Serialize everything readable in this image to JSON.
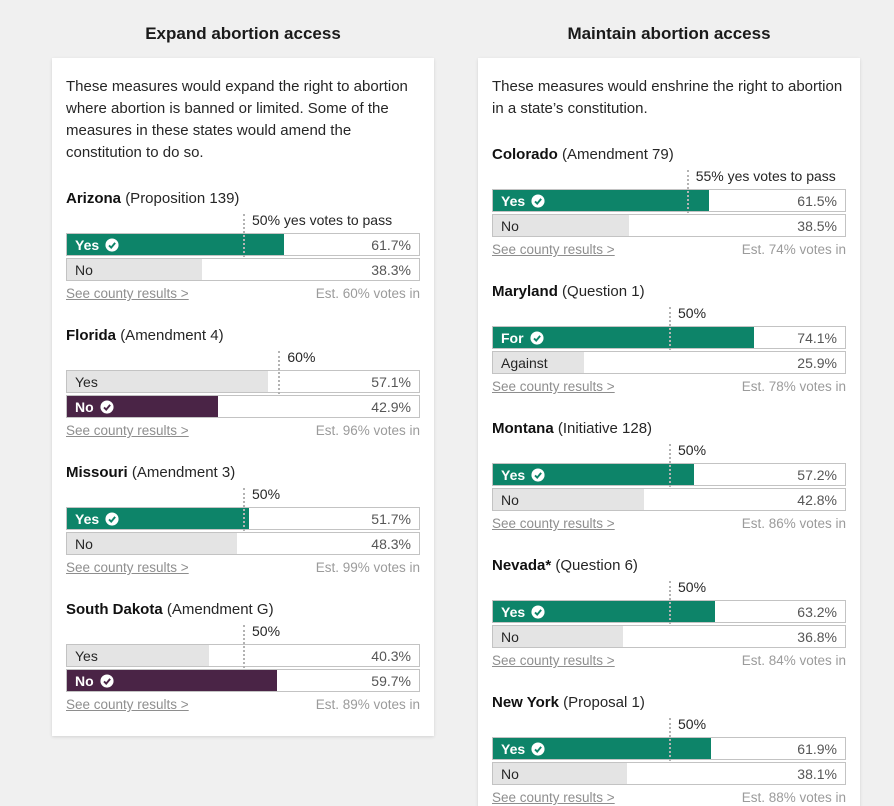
{
  "page": {
    "background_color": "#f0f0f0"
  },
  "colors": {
    "winner_green": "#0d8469",
    "winner_purple": "#4a2446",
    "loser_gray": "#e4e4e4",
    "bar_border": "#c3c3c3",
    "threshold_line": "#b3b3b3"
  },
  "columns": [
    {
      "title": "Expand abortion access",
      "description": "These measures would expand the right to abortion where abortion is banned or limited. Some of the measures in these states would amend the constitution to do so."
    },
    {
      "title": "Maintain abortion access",
      "description": "These measures would enshrine the right to abortion in a state’s constitution."
    }
  ],
  "chart_data": [
    {
      "type": "bar",
      "column": 0,
      "state": "Arizona",
      "ballot": "(Proposition 139)",
      "threshold_pct": 50,
      "threshold_label": "50% yes votes to pass",
      "categories": [
        "Yes",
        "No"
      ],
      "values": [
        61.7,
        38.3
      ],
      "value_labels": [
        "61.7%",
        "38.3%"
      ],
      "winner": "Yes",
      "winner_color": "green",
      "xlim": [
        0,
        100
      ],
      "county_link": "See county results >",
      "votes_in": "Est. 60% votes in"
    },
    {
      "type": "bar",
      "column": 0,
      "state": "Florida",
      "ballot": "(Amendment 4)",
      "threshold_pct": 60,
      "threshold_label": "60%",
      "categories": [
        "Yes",
        "No"
      ],
      "values": [
        57.1,
        42.9
      ],
      "value_labels": [
        "57.1%",
        "42.9%"
      ],
      "winner": "No",
      "winner_color": "purple",
      "xlim": [
        0,
        100
      ],
      "county_link": "See county results >",
      "votes_in": "Est. 96% votes in"
    },
    {
      "type": "bar",
      "column": 0,
      "state": "Missouri",
      "ballot": "(Amendment 3)",
      "threshold_pct": 50,
      "threshold_label": "50%",
      "categories": [
        "Yes",
        "No"
      ],
      "values": [
        51.7,
        48.3
      ],
      "value_labels": [
        "51.7%",
        "48.3%"
      ],
      "winner": "Yes",
      "winner_color": "green",
      "xlim": [
        0,
        100
      ],
      "county_link": "See county results >",
      "votes_in": "Est. 99% votes in"
    },
    {
      "type": "bar",
      "column": 0,
      "state": "South Dakota",
      "ballot": "(Amendment G)",
      "threshold_pct": 50,
      "threshold_label": "50%",
      "categories": [
        "Yes",
        "No"
      ],
      "values": [
        40.3,
        59.7
      ],
      "value_labels": [
        "40.3%",
        "59.7%"
      ],
      "winner": "No",
      "winner_color": "purple",
      "xlim": [
        0,
        100
      ],
      "county_link": "See county results >",
      "votes_in": "Est. 89% votes in"
    },
    {
      "type": "bar",
      "column": 1,
      "state": "Colorado",
      "ballot": "(Amendment 79)",
      "threshold_pct": 55,
      "threshold_label": "55% yes votes to pass",
      "categories": [
        "Yes",
        "No"
      ],
      "values": [
        61.5,
        38.5
      ],
      "value_labels": [
        "61.5%",
        "38.5%"
      ],
      "winner": "Yes",
      "winner_color": "green",
      "xlim": [
        0,
        100
      ],
      "county_link": "See county results >",
      "votes_in": "Est. 74% votes in"
    },
    {
      "type": "bar",
      "column": 1,
      "state": "Maryland",
      "ballot": "(Question 1)",
      "threshold_pct": 50,
      "threshold_label": "50%",
      "categories": [
        "For",
        "Against"
      ],
      "values": [
        74.1,
        25.9
      ],
      "value_labels": [
        "74.1%",
        "25.9%"
      ],
      "winner": "For",
      "winner_color": "green",
      "xlim": [
        0,
        100
      ],
      "county_link": "See county results >",
      "votes_in": "Est. 78% votes in"
    },
    {
      "type": "bar",
      "column": 1,
      "state": "Montana",
      "ballot": "(Initiative 128)",
      "threshold_pct": 50,
      "threshold_label": "50%",
      "categories": [
        "Yes",
        "No"
      ],
      "values": [
        57.2,
        42.8
      ],
      "value_labels": [
        "57.2%",
        "42.8%"
      ],
      "winner": "Yes",
      "winner_color": "green",
      "xlim": [
        0,
        100
      ],
      "county_link": "See county results >",
      "votes_in": "Est. 86% votes in"
    },
    {
      "type": "bar",
      "column": 1,
      "state": "Nevada*",
      "ballot": "(Question 6)",
      "threshold_pct": 50,
      "threshold_label": "50%",
      "categories": [
        "Yes",
        "No"
      ],
      "values": [
        63.2,
        36.8
      ],
      "value_labels": [
        "63.2%",
        "36.8%"
      ],
      "winner": "Yes",
      "winner_color": "green",
      "xlim": [
        0,
        100
      ],
      "county_link": "See county results >",
      "votes_in": "Est. 84% votes in"
    },
    {
      "type": "bar",
      "column": 1,
      "state": "New York",
      "ballot": "(Proposal 1)",
      "threshold_pct": 50,
      "threshold_label": "50%",
      "categories": [
        "Yes",
        "No"
      ],
      "values": [
        61.9,
        38.1
      ],
      "value_labels": [
        "61.9%",
        "38.1%"
      ],
      "winner": "Yes",
      "winner_color": "green",
      "xlim": [
        0,
        100
      ],
      "county_link": "See county results >",
      "votes_in": "Est. 88% votes in"
    }
  ]
}
